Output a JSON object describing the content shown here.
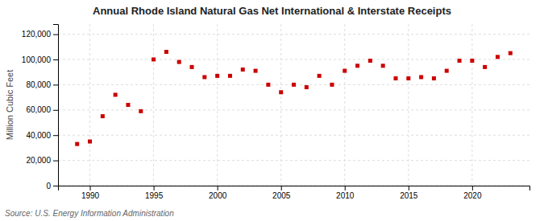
{
  "chart_data": {
    "type": "scatter",
    "title": "Annual Rhode Island Natural Gas Net International & Interstate Receipts",
    "ylabel": "Million Cubic Feet",
    "annotations": [
      "Source: U.S. Energy Information Administration"
    ],
    "x": [
      1989,
      1990,
      1991,
      1992,
      1993,
      1994,
      1995,
      1996,
      1997,
      1998,
      1999,
      2000,
      2001,
      2002,
      2003,
      2004,
      2005,
      2006,
      2007,
      2008,
      2009,
      2010,
      2011,
      2012,
      2013,
      2014,
      2015,
      2016,
      2017,
      2018,
      2019,
      2020,
      2021,
      2022,
      2023
    ],
    "values": [
      33000,
      35000,
      55000,
      72000,
      64000,
      59000,
      100000,
      106000,
      98000,
      94000,
      86000,
      87000,
      87000,
      92000,
      91000,
      80000,
      74000,
      80000,
      78000,
      87000,
      80000,
      91000,
      95000,
      99000,
      95000,
      85000,
      85000,
      86000,
      85000,
      91000,
      99000,
      99000,
      94000,
      102000,
      105000
    ],
    "color": "#cc0000",
    "marker": "square",
    "xlim": [
      1987.5,
      2024.5
    ],
    "xticks": [
      1990,
      1995,
      2000,
      2005,
      2010,
      2015,
      2020
    ],
    "ylim": [
      0,
      128000
    ],
    "yticks": [
      0,
      {
        "value": 20000,
        "label": "20,000"
      },
      {
        "value": 40000,
        "label": "40,000"
      },
      {
        "value": 60000,
        "label": "60,000"
      },
      {
        "value": 80000,
        "label": "80,000"
      },
      {
        "value": 100000,
        "label": "100,000"
      },
      {
        "value": 120000,
        "label": "120,000"
      }
    ],
    "grid": true
  }
}
